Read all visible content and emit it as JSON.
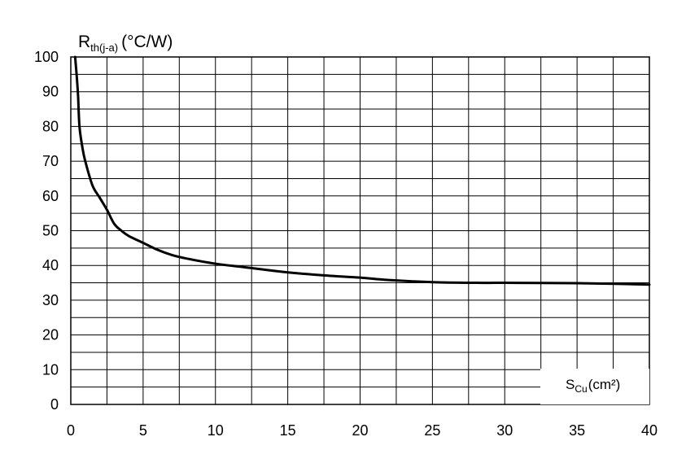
{
  "chart_data": {
    "type": "line",
    "ylabel": {
      "main": "R",
      "sub": "th(j-a)",
      "unit": "(°C/W)"
    },
    "xlabel": {
      "main": "S",
      "sub": "Cu",
      "unit": "(cm²)"
    },
    "xlim": [
      0,
      40
    ],
    "ylim": [
      0,
      100
    ],
    "x_ticks": [
      "0",
      "5",
      "10",
      "15",
      "20",
      "25",
      "30",
      "35",
      "40"
    ],
    "y_ticks": [
      "0",
      "10",
      "20",
      "30",
      "40",
      "50",
      "60",
      "70",
      "80",
      "90",
      "100"
    ],
    "grid": true,
    "series": [
      {
        "x": [
          0.3,
          0.4,
          0.5,
          0.6,
          0.8,
          1.0,
          1.5,
          2.0,
          2.5,
          3.0,
          3.5,
          4.0,
          5.0,
          6.0,
          7.0,
          8.0,
          10.0,
          12.0,
          15.0,
          18.0,
          20.0,
          22.0,
          25.0,
          28.0,
          30.0,
          35.0,
          38.0,
          40.0
        ],
        "y": [
          100,
          95,
          89,
          80,
          74,
          70,
          63,
          59.5,
          56,
          52,
          50,
          48.5,
          46.5,
          44.5,
          43,
          42,
          40.5,
          39.5,
          38,
          37,
          36.5,
          35.8,
          35.2,
          35,
          35,
          34.9,
          34.7,
          34.5
        ]
      }
    ]
  }
}
